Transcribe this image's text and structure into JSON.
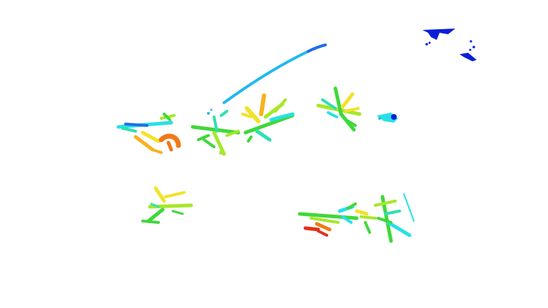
{
  "scene": {
    "background": "#ffffff",
    "palette": {
      "deep_blue": "#0a1fd6",
      "blue": "#1e6fe6",
      "sky": "#22b8f0",
      "cyan": "#28e0e6",
      "teal": "#2fe0b0",
      "green": "#3fd83a",
      "lime": "#a6e82a",
      "yellow": "#f2e22a",
      "amber": "#f7b21f",
      "orange": "#f07a18",
      "red": "#e2301a"
    }
  }
}
